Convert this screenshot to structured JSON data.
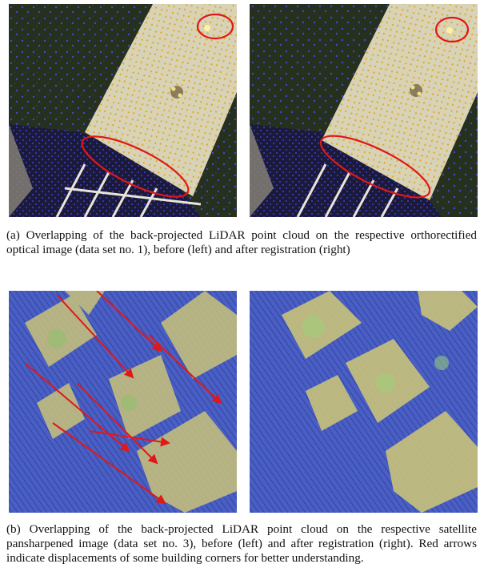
{
  "figure": {
    "caption_a": "(a) Overlapping of the back-projected LiDAR point cloud on the respective orthorectified optical image (data set no. 1), before (left) and after registration (right)",
    "caption_b": "(b) Overlapping of the back-projected LiDAR point cloud on the respective satellite pansharpened image (data set no. 3), before (left) and after registration (right). Red arrows indicate displacements of some building corners for better understanding.",
    "colors": {
      "vegetation": "#26301f",
      "roof": "#d8d2b6",
      "lidar_roof_points": "#e0a81c",
      "lidar_ground_points": "#3b3fd0",
      "highlight": "#e01818",
      "satellite_ground": "#4a5fc4",
      "satellite_building": "#c9c27a"
    }
  }
}
